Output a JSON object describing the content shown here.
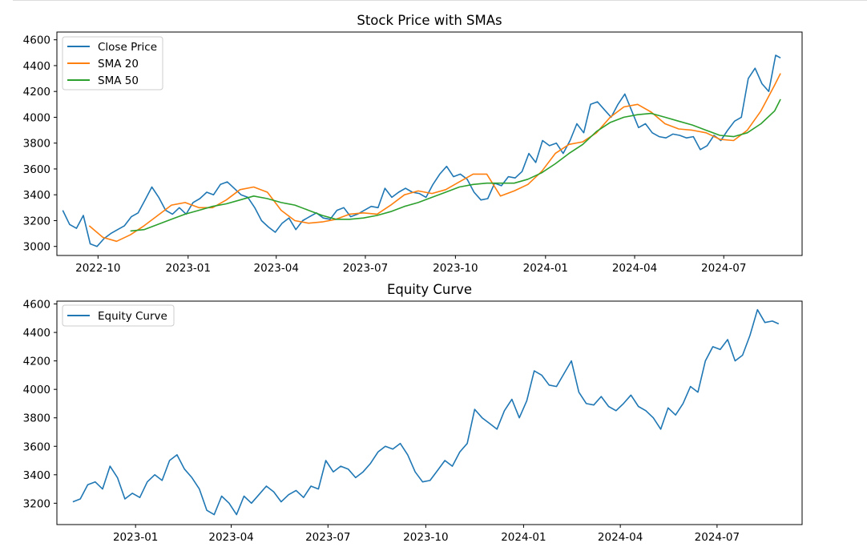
{
  "chart_data": [
    {
      "type": "line",
      "title": "Stock Price with SMAs",
      "xlabel": "",
      "ylabel": "",
      "xlim": [
        "2022-08-20",
        "2024-09-19"
      ],
      "ylim": [
        2930,
        4660
      ],
      "grid": false,
      "legend_position": "top-left",
      "x_ticks": [
        "2022-10",
        "2023-01",
        "2023-04",
        "2023-07",
        "2023-10",
        "2024-01",
        "2024-04",
        "2024-07"
      ],
      "y_ticks": [
        3000,
        3200,
        3400,
        3600,
        3800,
        4000,
        4200,
        4400,
        4600
      ],
      "series": [
        {
          "name": "Close Price",
          "color": "#1f77b4",
          "x": [
            "2022-08-26",
            "2022-09-02",
            "2022-09-09",
            "2022-09-16",
            "2022-09-23",
            "2022-09-30",
            "2022-10-07",
            "2022-10-14",
            "2022-10-21",
            "2022-10-28",
            "2022-11-04",
            "2022-11-11",
            "2022-11-18",
            "2022-11-25",
            "2022-12-02",
            "2022-12-09",
            "2022-12-16",
            "2022-12-23",
            "2022-12-30",
            "2023-01-06",
            "2023-01-13",
            "2023-01-20",
            "2023-01-27",
            "2023-02-03",
            "2023-02-10",
            "2023-02-17",
            "2023-02-24",
            "2023-03-03",
            "2023-03-10",
            "2023-03-17",
            "2023-03-24",
            "2023-03-31",
            "2023-04-07",
            "2023-04-14",
            "2023-04-21",
            "2023-04-28",
            "2023-05-05",
            "2023-05-12",
            "2023-05-19",
            "2023-05-26",
            "2023-06-02",
            "2023-06-09",
            "2023-06-16",
            "2023-06-23",
            "2023-06-30",
            "2023-07-07",
            "2023-07-14",
            "2023-07-21",
            "2023-07-28",
            "2023-08-04",
            "2023-08-11",
            "2023-08-18",
            "2023-08-25",
            "2023-09-01",
            "2023-09-08",
            "2023-09-15",
            "2023-09-22",
            "2023-09-29",
            "2023-10-06",
            "2023-10-13",
            "2023-10-20",
            "2023-10-27",
            "2023-11-03",
            "2023-11-10",
            "2023-11-17",
            "2023-11-24",
            "2023-12-01",
            "2023-12-08",
            "2023-12-15",
            "2023-12-22",
            "2023-12-29",
            "2024-01-05",
            "2024-01-12",
            "2024-01-19",
            "2024-01-26",
            "2024-02-02",
            "2024-02-09",
            "2024-02-16",
            "2024-02-23",
            "2024-03-01",
            "2024-03-08",
            "2024-03-15",
            "2024-03-22",
            "2024-03-29",
            "2024-04-05",
            "2024-04-12",
            "2024-04-19",
            "2024-04-26",
            "2024-05-03",
            "2024-05-10",
            "2024-05-17",
            "2024-05-24",
            "2024-05-31",
            "2024-06-07",
            "2024-06-14",
            "2024-06-21",
            "2024-06-28",
            "2024-07-05",
            "2024-07-12",
            "2024-07-19",
            "2024-07-26",
            "2024-08-02",
            "2024-08-09",
            "2024-08-16",
            "2024-08-23",
            "2024-08-28"
          ],
          "values": [
            3280,
            3170,
            3140,
            3240,
            3020,
            3000,
            3060,
            3100,
            3130,
            3160,
            3230,
            3260,
            3360,
            3460,
            3380,
            3280,
            3250,
            3300,
            3250,
            3340,
            3370,
            3420,
            3400,
            3480,
            3500,
            3450,
            3400,
            3380,
            3300,
            3200,
            3150,
            3110,
            3180,
            3220,
            3130,
            3200,
            3230,
            3260,
            3220,
            3210,
            3280,
            3300,
            3230,
            3250,
            3280,
            3310,
            3300,
            3450,
            3380,
            3420,
            3450,
            3420,
            3410,
            3380,
            3480,
            3560,
            3620,
            3540,
            3560,
            3520,
            3420,
            3360,
            3370,
            3490,
            3470,
            3540,
            3530,
            3580,
            3720,
            3650,
            3820,
            3780,
            3800,
            3720,
            3820,
            3950,
            3880,
            4100,
            4120,
            4060,
            4000,
            4100,
            4180,
            4050,
            3920,
            3950,
            3880,
            3850,
            3840,
            3870,
            3860,
            3840,
            3850,
            3750,
            3780,
            3860,
            3820,
            3900,
            3970,
            4000,
            4300,
            4380,
            4260,
            4200,
            4480,
            4460
          ]
        },
        {
          "name": "SMA 20",
          "color": "#ff7f0e",
          "x": [
            "2022-09-22",
            "2022-10-06",
            "2022-10-20",
            "2022-11-03",
            "2022-11-17",
            "2022-12-01",
            "2022-12-15",
            "2022-12-29",
            "2023-01-12",
            "2023-01-26",
            "2023-02-09",
            "2023-02-23",
            "2023-03-09",
            "2023-03-23",
            "2023-04-06",
            "2023-04-20",
            "2023-05-04",
            "2023-05-18",
            "2023-06-01",
            "2023-06-15",
            "2023-06-29",
            "2023-07-13",
            "2023-07-27",
            "2023-08-10",
            "2023-08-24",
            "2023-09-07",
            "2023-09-21",
            "2023-10-05",
            "2023-10-19",
            "2023-11-02",
            "2023-11-16",
            "2023-11-30",
            "2023-12-14",
            "2023-12-28",
            "2024-01-11",
            "2024-01-25",
            "2024-02-08",
            "2024-02-22",
            "2024-03-07",
            "2024-03-21",
            "2024-04-04",
            "2024-04-18",
            "2024-05-02",
            "2024-05-16",
            "2024-05-30",
            "2024-06-13",
            "2024-06-27",
            "2024-07-11",
            "2024-07-25",
            "2024-08-08",
            "2024-08-22",
            "2024-08-28"
          ],
          "values": [
            3160,
            3070,
            3040,
            3090,
            3160,
            3240,
            3320,
            3340,
            3300,
            3300,
            3360,
            3440,
            3460,
            3420,
            3280,
            3200,
            3180,
            3190,
            3210,
            3250,
            3260,
            3250,
            3320,
            3400,
            3430,
            3410,
            3440,
            3500,
            3560,
            3560,
            3390,
            3430,
            3480,
            3580,
            3720,
            3790,
            3810,
            3880,
            4000,
            4080,
            4100,
            4040,
            3950,
            3910,
            3900,
            3880,
            3830,
            3820,
            3900,
            4050,
            4250,
            4340
          ]
        },
        {
          "name": "SMA 50",
          "color": "#2ca02c",
          "x": [
            "2022-11-03",
            "2022-11-17",
            "2022-12-01",
            "2022-12-15",
            "2022-12-29",
            "2023-01-12",
            "2023-01-26",
            "2023-02-09",
            "2023-02-23",
            "2023-03-09",
            "2023-03-23",
            "2023-04-06",
            "2023-04-20",
            "2023-05-04",
            "2023-05-18",
            "2023-06-01",
            "2023-06-15",
            "2023-06-29",
            "2023-07-13",
            "2023-07-27",
            "2023-08-10",
            "2023-08-24",
            "2023-09-07",
            "2023-09-21",
            "2023-10-05",
            "2023-10-19",
            "2023-11-02",
            "2023-11-16",
            "2023-11-30",
            "2023-12-14",
            "2023-12-28",
            "2024-01-11",
            "2024-01-25",
            "2024-02-08",
            "2024-02-22",
            "2024-03-07",
            "2024-03-21",
            "2024-04-04",
            "2024-04-18",
            "2024-05-02",
            "2024-05-16",
            "2024-05-30",
            "2024-06-13",
            "2024-06-27",
            "2024-07-11",
            "2024-07-25",
            "2024-08-08",
            "2024-08-22",
            "2024-08-28"
          ],
          "values": [
            3120,
            3130,
            3170,
            3210,
            3250,
            3280,
            3310,
            3330,
            3360,
            3390,
            3370,
            3340,
            3320,
            3280,
            3240,
            3210,
            3210,
            3220,
            3240,
            3270,
            3310,
            3340,
            3380,
            3420,
            3460,
            3480,
            3490,
            3490,
            3490,
            3520,
            3570,
            3640,
            3720,
            3790,
            3890,
            3960,
            4000,
            4020,
            4030,
            4000,
            3970,
            3940,
            3900,
            3860,
            3850,
            3880,
            3950,
            4050,
            4140
          ]
        }
      ]
    },
    {
      "type": "line",
      "title": "Equity Curve",
      "xlabel": "",
      "ylabel": "",
      "xlim": [
        "2022-10-19",
        "2024-09-19"
      ],
      "ylim": [
        3050,
        4620
      ],
      "grid": false,
      "legend_position": "top-left",
      "x_ticks": [
        "2023-01",
        "2023-04",
        "2023-07",
        "2023-10",
        "2024-01",
        "2024-04",
        "2024-07"
      ],
      "y_ticks": [
        3200,
        3400,
        3600,
        3800,
        4000,
        4200,
        4400,
        4600
      ],
      "series": [
        {
          "name": "Equity Curve",
          "color": "#1f77b4",
          "x": [
            "2022-11-03",
            "2022-11-10",
            "2022-11-17",
            "2022-11-24",
            "2022-12-01",
            "2022-12-08",
            "2022-12-15",
            "2022-12-22",
            "2022-12-29",
            "2023-01-05",
            "2023-01-12",
            "2023-01-19",
            "2023-01-26",
            "2023-02-02",
            "2023-02-09",
            "2023-02-16",
            "2023-02-23",
            "2023-03-02",
            "2023-03-09",
            "2023-03-16",
            "2023-03-23",
            "2023-03-30",
            "2023-04-06",
            "2023-04-13",
            "2023-04-20",
            "2023-04-27",
            "2023-05-04",
            "2023-05-11",
            "2023-05-18",
            "2023-05-25",
            "2023-06-01",
            "2023-06-08",
            "2023-06-15",
            "2023-06-22",
            "2023-06-29",
            "2023-07-06",
            "2023-07-13",
            "2023-07-20",
            "2023-07-27",
            "2023-08-03",
            "2023-08-10",
            "2023-08-17",
            "2023-08-24",
            "2023-08-31",
            "2023-09-07",
            "2023-09-14",
            "2023-09-21",
            "2023-09-28",
            "2023-10-05",
            "2023-10-12",
            "2023-10-19",
            "2023-10-26",
            "2023-11-02",
            "2023-11-09",
            "2023-11-16",
            "2023-11-23",
            "2023-11-30",
            "2023-12-07",
            "2023-12-14",
            "2023-12-21",
            "2023-12-28",
            "2024-01-04",
            "2024-01-11",
            "2024-01-18",
            "2024-01-25",
            "2024-02-01",
            "2024-02-08",
            "2024-02-15",
            "2024-02-22",
            "2024-02-29",
            "2024-03-07",
            "2024-03-14",
            "2024-03-21",
            "2024-03-28",
            "2024-04-04",
            "2024-04-11",
            "2024-04-18",
            "2024-04-25",
            "2024-05-02",
            "2024-05-09",
            "2024-05-16",
            "2024-05-23",
            "2024-05-30",
            "2024-06-06",
            "2024-06-13",
            "2024-06-20",
            "2024-06-27",
            "2024-07-04",
            "2024-07-11",
            "2024-07-18",
            "2024-07-25",
            "2024-08-01",
            "2024-08-08",
            "2024-08-15",
            "2024-08-22",
            "2024-08-28"
          ],
          "values": [
            3210,
            3230,
            3330,
            3350,
            3300,
            3460,
            3380,
            3230,
            3270,
            3240,
            3350,
            3400,
            3360,
            3500,
            3540,
            3440,
            3380,
            3300,
            3150,
            3120,
            3250,
            3200,
            3120,
            3250,
            3200,
            3260,
            3320,
            3280,
            3210,
            3260,
            3290,
            3240,
            3320,
            3300,
            3500,
            3420,
            3460,
            3440,
            3380,
            3420,
            3480,
            3560,
            3600,
            3580,
            3620,
            3540,
            3420,
            3350,
            3360,
            3430,
            3500,
            3460,
            3560,
            3620,
            3860,
            3800,
            3760,
            3720,
            3850,
            3930,
            3800,
            3920,
            4130,
            4100,
            4030,
            4020,
            4110,
            4200,
            3980,
            3900,
            3890,
            3950,
            3880,
            3850,
            3900,
            3960,
            3880,
            3850,
            3800,
            3720,
            3870,
            3820,
            3900,
            4020,
            3980,
            4200,
            4300,
            4280,
            4350,
            4200,
            4240,
            4380,
            4560,
            4470,
            4480,
            4460
          ]
        }
      ]
    }
  ]
}
